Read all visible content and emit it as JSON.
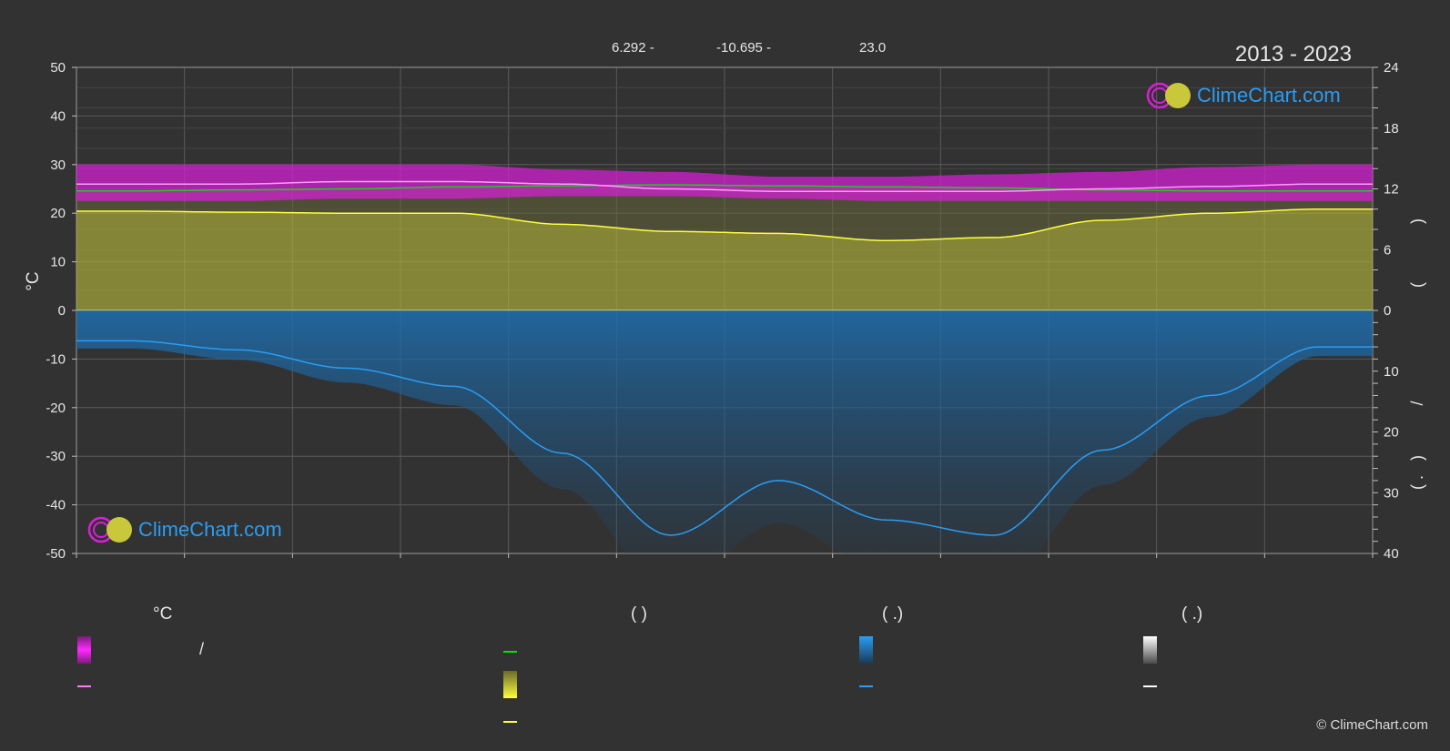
{
  "header": {
    "period": "2013 - 2023",
    "coords": [
      "6.292 -",
      "-10.695 -",
      "23.0"
    ]
  },
  "logo": {
    "text": "ClimeChart.com"
  },
  "copyright": "© ClimeChart.com",
  "legend": {
    "col1_title": "°C",
    "col1_slash": "/",
    "col2_title": "(            )",
    "col3_title": "(    .)",
    "col4_title": "(    .)"
  },
  "colors": {
    "background": "#323232",
    "temp_band": "#d81fd8",
    "temp_mean": "#ff7aff",
    "daylight": "#19d219",
    "sunshine_band": "#c8c83a",
    "sunshine_mean": "#ffff3c",
    "precip_band": "#1e6fb0",
    "precip_mean": "#2a9df4",
    "snow_mean": "#ffffff"
  },
  "chart_data": {
    "type": "area",
    "months": 12,
    "left_axis": {
      "label": "°C",
      "range": [
        -50,
        50
      ],
      "ticks": [
        50,
        40,
        30,
        20,
        10,
        0,
        -10,
        -20,
        -30,
        -40,
        -50
      ]
    },
    "right_axis_top": {
      "range": [
        0,
        24
      ],
      "ticks": [
        24,
        18,
        12,
        6,
        0
      ]
    },
    "right_axis_bottom": {
      "range": [
        0,
        40
      ],
      "ticks": [
        10,
        20,
        30,
        40
      ]
    },
    "right_axis_labels": [
      ")",
      "(",
      "/",
      ")",
      "(  ."
    ],
    "series": [
      {
        "key": "temp_max",
        "values": [
          30,
          30,
          30,
          30,
          29,
          28.5,
          27.5,
          27.5,
          28,
          28.5,
          29.5,
          30
        ]
      },
      {
        "key": "temp_min",
        "values": [
          22.5,
          22.5,
          23,
          23,
          23.5,
          23.5,
          23,
          22.5,
          22.5,
          22.5,
          22.5,
          22.5
        ]
      },
      {
        "key": "temp_mean",
        "values": [
          26,
          26,
          26.5,
          26.5,
          26,
          25,
          24.5,
          24.5,
          24.5,
          25,
          25.5,
          26
        ]
      },
      {
        "key": "daylight_hours",
        "values": [
          11.8,
          11.9,
          12.0,
          12.2,
          12.3,
          12.4,
          12.3,
          12.2,
          12.1,
          11.9,
          11.8,
          11.8
        ]
      },
      {
        "key": "sunshine_hours",
        "values": [
          9.8,
          9.7,
          9.6,
          9.6,
          8.5,
          7.8,
          7.6,
          6.9,
          7.2,
          8.9,
          9.6,
          10.0
        ]
      },
      {
        "key": "precip_mm",
        "values": [
          5,
          6.5,
          9.5,
          12.5,
          23.5,
          37,
          28,
          34.5,
          37,
          23,
          14,
          6
        ]
      }
    ]
  }
}
